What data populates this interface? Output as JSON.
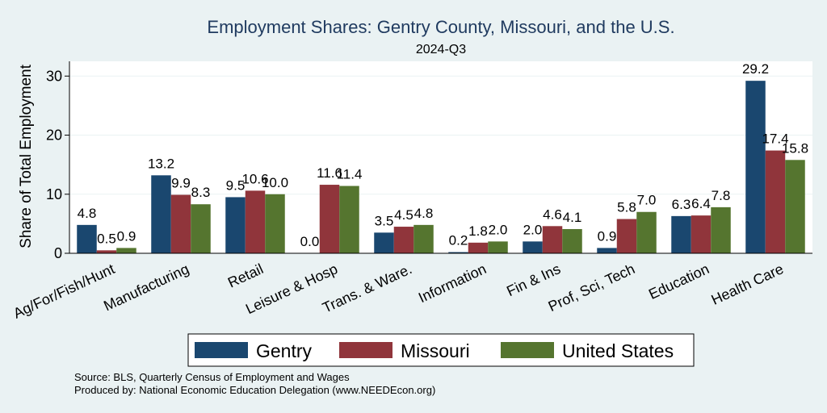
{
  "chart_data": {
    "type": "bar",
    "title": "Employment Shares: Gentry County, Missouri, and the U.S.",
    "subtitle": "2024-Q3",
    "ylabel": "Share of Total Employment",
    "ylim": [
      0,
      32.5
    ],
    "yticks": [
      0,
      10,
      20,
      30
    ],
    "grid": true,
    "legend": "bottom",
    "categories": [
      "Ag/For/Fish/Hunt",
      "Manufacturing",
      "Retail",
      "Leisure & Hosp",
      "Trans. & Ware.",
      "Information",
      "Fin & Ins",
      "Prof, Sci, Tech",
      "Education",
      "Health Care"
    ],
    "series": [
      {
        "name": "Gentry",
        "color": "#1a476f",
        "values": [
          4.8,
          13.2,
          9.5,
          0.0,
          3.5,
          0.2,
          2.0,
          0.9,
          6.3,
          29.2
        ]
      },
      {
        "name": "Missouri",
        "color": "#90353b",
        "values": [
          0.5,
          9.9,
          10.6,
          11.6,
          4.5,
          1.8,
          4.6,
          5.8,
          6.4,
          17.4
        ]
      },
      {
        "name": "United States",
        "color": "#55752f",
        "values": [
          0.9,
          8.3,
          10.0,
          11.4,
          4.8,
          2.0,
          4.1,
          7.0,
          7.8,
          15.8
        ]
      }
    ]
  },
  "footer": {
    "source": "Source: BLS, Quarterly Census of Employment and Wages",
    "produced_by": "Produced by: National Economic Education Delegation (www.NEEDEcon.org)"
  }
}
